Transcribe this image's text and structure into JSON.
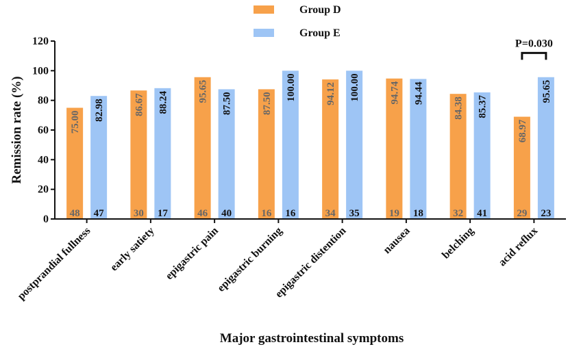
{
  "chart_data": {
    "type": "bar",
    "title": "",
    "xlabel": "Major gastrointestinal symptoms",
    "ylabel": "Remission rate (%)",
    "ylim": [
      0,
      120
    ],
    "yticks": [
      0,
      20,
      40,
      60,
      80,
      100,
      120
    ],
    "categories": [
      "postprandial fullness",
      "early satiety",
      "epigastric pain",
      "epigastric burning",
      "epigastric distention",
      "nausea",
      "belching",
      "acid reflux"
    ],
    "series": [
      {
        "name": "Group D",
        "color": "#F7A14A",
        "label_color": "#666666",
        "values": [
          75.0,
          86.67,
          95.65,
          87.5,
          94.12,
          94.74,
          84.38,
          68.97
        ],
        "value_labels": [
          "75.00",
          "86.67",
          "95.65",
          "87.50",
          "94.12",
          "94.74",
          "84.38",
          "68.97"
        ],
        "n_labels": [
          "48",
          "30",
          "46",
          "16",
          "34",
          "19",
          "32",
          "29"
        ]
      },
      {
        "name": "Group E",
        "color": "#9EC5F5",
        "label_color": "#111111",
        "values": [
          82.98,
          88.24,
          87.5,
          100.0,
          100.0,
          94.44,
          85.37,
          95.65
        ],
        "value_labels": [
          "82.98",
          "88.24",
          "87.50",
          "100.00",
          "100.00",
          "94.44",
          "85.37",
          "95.65"
        ],
        "n_labels": [
          "47",
          "17",
          "40",
          "16",
          "35",
          "18",
          "41",
          "23"
        ]
      }
    ],
    "annotation": {
      "text": "P=0.030",
      "category": "acid reflux",
      "bracket_y": 112
    },
    "legend_position": "top-center"
  }
}
